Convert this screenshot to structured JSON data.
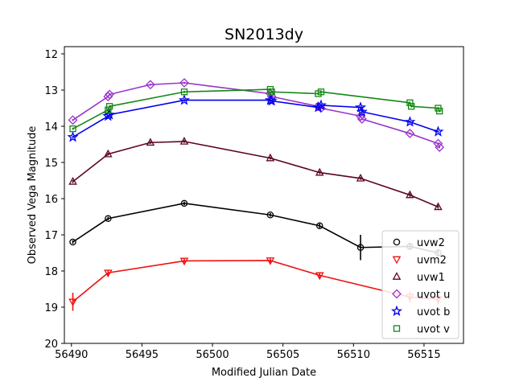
{
  "chart_data": {
    "type": "scatter",
    "title": "SN2013dy",
    "xlabel": "Modified Julian Date",
    "ylabel": "Observed Vega Magnitude",
    "xlim": [
      56489.5,
      56517.8
    ],
    "ylim": [
      20,
      11.8
    ],
    "y_inverted": true,
    "grid": false,
    "legend_position": "lower-right",
    "x_ticks": [
      56490,
      56495,
      56500,
      56505,
      56510,
      56515
    ],
    "x_tick_labels": [
      "56490",
      "56495",
      "56500",
      "56505",
      "56510",
      "56515"
    ],
    "y_ticks": [
      12,
      13,
      14,
      15,
      16,
      17,
      18,
      19,
      20
    ],
    "y_tick_labels": [
      "12",
      "13",
      "14",
      "15",
      "16",
      "17",
      "18",
      "19",
      "20"
    ],
    "series": [
      {
        "name": "uvw2",
        "color": "#000000",
        "marker": "circle",
        "x": [
          56490.1,
          56492.6,
          56498.0,
          56504.1,
          56507.6,
          56510.5,
          56514.0,
          56516.0
        ],
        "y": [
          17.2,
          16.55,
          16.13,
          16.45,
          16.75,
          17.35,
          17.32,
          17.5
        ],
        "yerr": [
          0.05,
          0.05,
          0.05,
          0.05,
          0.06,
          0.35,
          0.1,
          0.1
        ]
      },
      {
        "name": "uvm2",
        "color": "#ee1111",
        "marker": "triangle-down",
        "x": [
          56490.1,
          56492.6,
          56498.0,
          56504.1,
          56507.6,
          56514.0,
          56516.0
        ],
        "y": [
          18.85,
          18.05,
          17.72,
          17.71,
          18.12,
          18.72,
          18.78
        ],
        "yerr": [
          0.25,
          0.08,
          0.06,
          0.06,
          0.08,
          0.15,
          0.15
        ]
      },
      {
        "name": "uvw1",
        "color": "#5c0522",
        "marker": "triangle-up",
        "x": [
          56490.1,
          56492.6,
          56495.6,
          56498.0,
          56504.1,
          56507.6,
          56510.5,
          56514.0,
          56516.0
        ],
        "y": [
          15.53,
          14.77,
          14.45,
          14.42,
          14.88,
          15.28,
          15.44,
          15.9,
          16.23
        ],
        "yerr": [
          0.04,
          0.04,
          0.04,
          0.04,
          0.04,
          0.04,
          0.04,
          0.05,
          0.05
        ]
      },
      {
        "name": "uvot u",
        "color": "#9932cc",
        "marker": "diamond",
        "x": [
          56490.1,
          56492.6,
          56492.7,
          56495.6,
          56498.0,
          56504.1,
          56504.2,
          56507.5,
          56507.7,
          56510.5,
          56510.6,
          56514.0,
          56516.0,
          56516.1
        ],
        "y": [
          13.83,
          13.18,
          13.12,
          12.85,
          12.8,
          13.1,
          13.18,
          13.45,
          13.5,
          13.72,
          13.8,
          14.2,
          14.48,
          14.58
        ],
        "yerr": [
          0.03,
          0.03,
          0.03,
          0.03,
          0.03,
          0.03,
          0.03,
          0.03,
          0.03,
          0.03,
          0.03,
          0.03,
          0.03,
          0.03
        ]
      },
      {
        "name": "uvot b",
        "color": "#0000ee",
        "marker": "star",
        "x": [
          56490.1,
          56492.6,
          56492.7,
          56498.0,
          56504.1,
          56504.2,
          56507.5,
          56507.7,
          56510.5,
          56510.6,
          56514.0,
          56516.0
        ],
        "y": [
          14.3,
          13.72,
          13.68,
          13.28,
          13.28,
          13.3,
          13.48,
          13.42,
          13.48,
          13.6,
          13.88,
          14.15
        ],
        "yerr": [
          0.03,
          0.03,
          0.03,
          0.03,
          0.03,
          0.03,
          0.03,
          0.03,
          0.03,
          0.03,
          0.03,
          0.03
        ]
      },
      {
        "name": "uvot v",
        "color": "#118811",
        "marker": "square",
        "x": [
          56490.1,
          56492.6,
          56492.7,
          56498.0,
          56504.1,
          56504.2,
          56507.5,
          56507.7,
          56514.0,
          56514.1,
          56516.0,
          56516.1
        ],
        "y": [
          14.07,
          13.55,
          13.45,
          13.05,
          12.98,
          13.05,
          13.1,
          13.05,
          13.35,
          13.45,
          13.5,
          13.58
        ],
        "yerr": [
          0.03,
          0.03,
          0.03,
          0.03,
          0.03,
          0.03,
          0.03,
          0.03,
          0.03,
          0.03,
          0.03,
          0.03
        ]
      }
    ]
  }
}
